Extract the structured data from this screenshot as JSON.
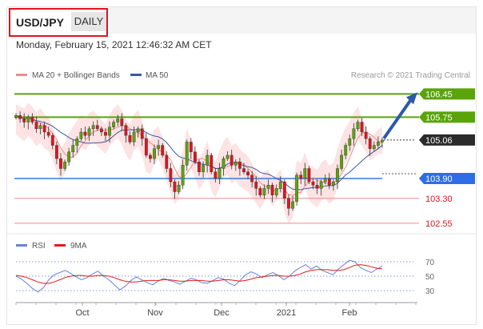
{
  "header": {
    "symbol": "USD/JPY",
    "period": "DAILY",
    "datetime": "Monday, February 15, 2021 12:46:32 AM CET"
  },
  "legend": {
    "items": [
      {
        "label": "MA 20 + Bollinger Bands",
        "color": "#f08b8b"
      },
      {
        "label": "MA 50",
        "color": "#3a5aa0"
      }
    ],
    "copyright": "Research © 2021 Trading Central"
  },
  "rsi_legend": {
    "items": [
      {
        "label": "RSI",
        "color": "#6a82d6"
      },
      {
        "label": "9MA",
        "color": "#e31a1a"
      }
    ]
  },
  "chart_data": [
    {
      "type": "candlestick",
      "ylim": [
        102.45,
        106.7
      ],
      "x_tick_labels": [
        "Oct",
        "Nov",
        "Dec",
        "2021",
        "Feb"
      ],
      "close_path": [
        105.8,
        105.7,
        105.6,
        105.75,
        105.6,
        105.4,
        105.5,
        105.3,
        105.2,
        104.9,
        104.5,
        104.2,
        104.4,
        104.7,
        104.9,
        105.1,
        105.3,
        105.2,
        105.4,
        105.5,
        105.4,
        105.3,
        105.2,
        105.45,
        105.6,
        105.7,
        105.5,
        105.2,
        105.0,
        105.3,
        105.4,
        105.1,
        104.6,
        104.5,
        104.8,
        104.9,
        104.6,
        104.2,
        103.8,
        103.5,
        103.7,
        104.3,
        105.0,
        104.7,
        104.4,
        104.1,
        104.3,
        104.6,
        104.1,
        103.9,
        104.2,
        104.5,
        104.6,
        104.3,
        104.4,
        104.2,
        104.1,
        104.0,
        103.8,
        103.6,
        103.4,
        103.6,
        103.7,
        103.4,
        103.6,
        103.8,
        103.3,
        103.0,
        103.2,
        104.0,
        103.9,
        104.2,
        103.8,
        103.7,
        103.6,
        103.8,
        103.9,
        103.7,
        103.8,
        104.2,
        104.6,
        104.9,
        105.1,
        105.4,
        105.6,
        105.3,
        105.1,
        104.8,
        104.9,
        105.0,
        105.06
      ],
      "levels": [
        {
          "value": 106.45,
          "label": "106.45",
          "style": "resistance"
        },
        {
          "value": 105.75,
          "label": "105.75",
          "style": "resistance"
        },
        {
          "value": 105.06,
          "label": "105.06",
          "style": "last"
        },
        {
          "value": 103.9,
          "label": "103.90",
          "style": "pivot"
        },
        {
          "value": 103.3,
          "label": "103.30",
          "style": "support"
        },
        {
          "value": 102.55,
          "label": "102.55",
          "style": "support"
        }
      ],
      "arrow": {
        "from": 105.06,
        "to": 106.45
      }
    },
    {
      "type": "line",
      "ylim": [
        20,
        80
      ],
      "y_tick_labels": [
        "70",
        "50",
        "30"
      ],
      "y_ticks": [
        70,
        50,
        30
      ],
      "series": [
        {
          "name": "RSI",
          "values": [
            50,
            46,
            40,
            33,
            28,
            34,
            45,
            52,
            55,
            58,
            54,
            49,
            45,
            48,
            53,
            57,
            50,
            45,
            38,
            31,
            36,
            44,
            49,
            45,
            41,
            38,
            43,
            47,
            44,
            42,
            39,
            43,
            47,
            45,
            41,
            40,
            44,
            48,
            46,
            40,
            37,
            44,
            52,
            56,
            53,
            48,
            52,
            55,
            51,
            45,
            50,
            57,
            62,
            66,
            60,
            64,
            58,
            55,
            52,
            60,
            66,
            72,
            70,
            62,
            58,
            55,
            60,
            64
          ]
        },
        {
          "name": "9MA",
          "values": [
            51,
            50,
            48,
            45,
            42,
            40,
            40,
            42,
            45,
            48,
            50,
            51,
            51,
            50,
            50,
            51,
            51,
            50,
            48,
            45,
            43,
            42,
            42,
            43,
            44,
            44,
            44,
            45,
            45,
            44,
            43,
            43,
            44,
            44,
            44,
            43,
            43,
            44,
            45,
            45,
            44,
            43,
            44,
            46,
            48,
            49,
            50,
            51,
            51,
            50,
            50,
            51,
            53,
            56,
            58,
            59,
            59,
            59,
            58,
            58,
            59,
            62,
            65,
            66,
            65,
            63,
            61,
            60
          ]
        }
      ]
    }
  ]
}
